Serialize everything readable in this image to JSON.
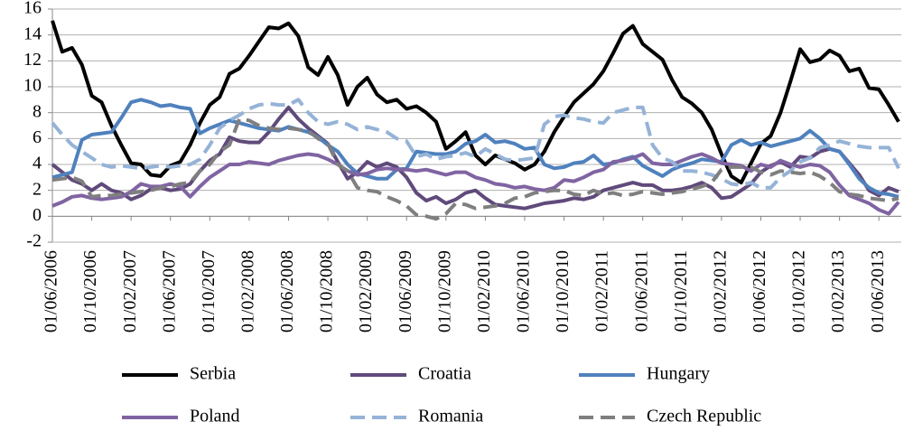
{
  "chart_data": {
    "type": "line",
    "categories": [
      "01/06/2006",
      null,
      null,
      null,
      "01/10/2006",
      null,
      null,
      null,
      "01/02/2007",
      null,
      null,
      null,
      "01/06/2007",
      null,
      null,
      null,
      "01/10/2007",
      null,
      null,
      null,
      "01/02/2008",
      null,
      null,
      null,
      "01/06/2008",
      null,
      null,
      null,
      "01/10/2008",
      null,
      null,
      null,
      "01/02/2009",
      null,
      null,
      null,
      "01/06/2009",
      null,
      null,
      null,
      "01/10/2009",
      null,
      null,
      null,
      "01/02/2010",
      null,
      null,
      null,
      "01/06/2010",
      null,
      null,
      null,
      "01/10/2010",
      null,
      null,
      null,
      "01/02/2011",
      null,
      null,
      null,
      "01/06/2011",
      null,
      null,
      null,
      "01/10/2011",
      null,
      null,
      null,
      "01/02/2012",
      null,
      null,
      null,
      "01/06/2012",
      null,
      null,
      null,
      "01/10/2012",
      null,
      null,
      null,
      "01/02/2013",
      null,
      null,
      null,
      "01/06/2013",
      null,
      null
    ],
    "ylim": [
      -2,
      16
    ],
    "yticks": [
      -2,
      0,
      2,
      4,
      6,
      8,
      10,
      12,
      14,
      16
    ],
    "grid": true,
    "series": [
      {
        "name": "Serbia",
        "color": "#000000",
        "style": "solid",
        "values": [
          15.1,
          12.7,
          13.0,
          11.7,
          9.3,
          8.8,
          7.0,
          5.5,
          4.1,
          4.0,
          3.2,
          3.1,
          3.9,
          4.2,
          5.5,
          7.2,
          8.6,
          9.2,
          11.0,
          11.4,
          12.4,
          13.5,
          14.6,
          14.5,
          14.9,
          13.9,
          11.5,
          10.9,
          12.3,
          10.9,
          8.6,
          10.0,
          10.7,
          9.4,
          8.8,
          9.0,
          8.3,
          8.5,
          8.0,
          7.3,
          5.2,
          5.8,
          6.5,
          4.7,
          4.0,
          4.7,
          4.4,
          4.1,
          3.6,
          4.0,
          5.0,
          6.5,
          7.7,
          8.8,
          9.5,
          10.2,
          11.2,
          12.6,
          14.1,
          14.7,
          13.3,
          12.7,
          12.1,
          10.5,
          9.2,
          8.7,
          8.0,
          6.7,
          4.8,
          3.1,
          2.6,
          4.1,
          5.6,
          6.2,
          8.0,
          10.4,
          12.9,
          11.9,
          12.1,
          12.8,
          12.4,
          11.2,
          11.4,
          9.9,
          9.8,
          8.6,
          7.3
        ]
      },
      {
        "name": "Croatia",
        "color": "#604a7b",
        "style": "solid",
        "values": [
          4.0,
          3.4,
          2.8,
          2.5,
          2.0,
          2.5,
          2.0,
          1.8,
          1.3,
          1.6,
          2.1,
          2.2,
          2.0,
          2.1,
          2.5,
          3.5,
          4.3,
          4.8,
          6.1,
          5.8,
          5.7,
          5.7,
          6.5,
          7.5,
          8.4,
          7.5,
          6.8,
          6.2,
          5.6,
          4.2,
          2.9,
          3.4,
          4.2,
          3.8,
          4.1,
          3.8,
          3.0,
          1.8,
          1.2,
          1.5,
          1.0,
          1.3,
          1.8,
          2.0,
          1.4,
          0.9,
          0.8,
          0.7,
          0.6,
          0.8,
          1.0,
          1.1,
          1.2,
          1.4,
          1.3,
          1.5,
          2.0,
          2.2,
          2.4,
          2.6,
          2.4,
          2.4,
          2.0,
          2.0,
          2.1,
          2.3,
          2.6,
          2.2,
          1.4,
          1.5,
          2.0,
          2.5,
          3.4,
          3.9,
          4.2,
          3.8,
          4.6,
          4.5,
          5.0,
          5.2,
          5.0,
          4.1,
          3.2,
          2.0,
          1.6,
          2.2,
          1.9
        ]
      },
      {
        "name": "Hungary",
        "color": "#4f81bd",
        "style": "solid",
        "values": [
          3.0,
          3.2,
          3.4,
          5.9,
          6.3,
          6.4,
          6.5,
          7.6,
          8.8,
          9.0,
          8.8,
          8.5,
          8.6,
          8.4,
          8.3,
          6.4,
          6.8,
          7.1,
          7.4,
          7.2,
          7.0,
          6.8,
          6.7,
          6.6,
          6.9,
          6.7,
          6.5,
          6.1,
          5.5,
          5.0,
          4.0,
          3.3,
          3.1,
          2.9,
          2.9,
          3.6,
          3.7,
          5.0,
          4.9,
          4.8,
          4.8,
          5.0,
          5.6,
          5.8,
          6.3,
          5.7,
          5.8,
          5.6,
          5.2,
          5.3,
          4.0,
          3.7,
          3.8,
          4.1,
          4.2,
          4.7,
          4.0,
          4.1,
          4.4,
          4.6,
          3.9,
          3.5,
          3.1,
          3.6,
          3.9,
          4.1,
          4.4,
          4.3,
          4.2,
          5.5,
          5.9,
          5.5,
          5.7,
          5.4,
          5.6,
          5.8,
          6.0,
          6.6,
          6.0,
          5.2,
          5.0,
          4.0,
          2.9,
          2.2,
          1.8,
          1.7,
          1.5
        ]
      },
      {
        "name": "Poland",
        "color": "#8064a2",
        "style": "solid",
        "values": [
          0.8,
          1.1,
          1.5,
          1.6,
          1.4,
          1.3,
          1.4,
          1.5,
          1.9,
          2.5,
          2.3,
          2.3,
          2.5,
          2.3,
          1.5,
          2.3,
          3.0,
          3.5,
          4.0,
          4.0,
          4.2,
          4.1,
          4.0,
          4.3,
          4.5,
          4.7,
          4.8,
          4.7,
          4.4,
          4.0,
          3.5,
          3.2,
          3.3,
          3.6,
          3.7,
          3.6,
          3.6,
          3.5,
          3.6,
          3.4,
          3.2,
          3.4,
          3.4,
          3.0,
          2.8,
          2.5,
          2.4,
          2.2,
          2.3,
          2.1,
          2.0,
          2.2,
          2.8,
          2.7,
          3.0,
          3.4,
          3.6,
          4.2,
          4.3,
          4.5,
          4.8,
          4.1,
          4.0,
          4.0,
          4.3,
          4.6,
          4.8,
          4.5,
          4.1,
          4.0,
          3.9,
          3.5,
          4.0,
          3.8,
          4.3,
          4.0,
          3.8,
          4.0,
          3.9,
          3.4,
          2.4,
          1.6,
          1.3,
          1.0,
          0.5,
          0.2,
          1.1
        ]
      },
      {
        "name": "Romania",
        "color": "#95b3d7",
        "style": "dashed",
        "values": [
          7.2,
          6.3,
          5.5,
          5.0,
          4.5,
          4.0,
          3.8,
          3.9,
          3.8,
          3.7,
          3.8,
          3.9,
          3.8,
          3.9,
          4.0,
          4.4,
          5.5,
          6.8,
          7.4,
          7.8,
          8.3,
          8.6,
          8.7,
          8.6,
          8.6,
          9.0,
          8.0,
          7.3,
          7.1,
          7.3,
          7.1,
          6.7,
          6.9,
          6.7,
          6.5,
          6.0,
          5.8,
          4.6,
          4.8,
          4.4,
          4.6,
          4.7,
          4.9,
          4.6,
          5.2,
          4.8,
          4.4,
          4.3,
          4.4,
          4.5,
          7.1,
          7.7,
          7.8,
          7.6,
          7.5,
          7.3,
          7.2,
          8.0,
          8.2,
          8.4,
          8.4,
          5.5,
          4.5,
          4.2,
          3.5,
          3.5,
          3.4,
          3.2,
          2.9,
          2.5,
          2.4,
          2.6,
          2.2,
          2.2,
          3.0,
          3.5,
          4.2,
          4.5,
          5.3,
          5.5,
          5.8,
          5.6,
          5.4,
          5.3,
          5.3,
          5.3,
          3.7
        ]
      },
      {
        "name": "Czech Republic",
        "color": "#7f7f7f",
        "style": "dashed",
        "values": [
          2.8,
          2.9,
          3.0,
          2.7,
          1.5,
          1.6,
          1.6,
          1.7,
          1.8,
          1.9,
          2.0,
          2.2,
          2.3,
          2.5,
          2.6,
          3.5,
          4.0,
          5.0,
          5.5,
          7.5,
          7.4,
          7.0,
          6.8,
          6.7,
          6.8,
          6.7,
          6.6,
          6.0,
          5.6,
          4.0,
          3.5,
          2.2,
          2.0,
          1.9,
          1.5,
          1.2,
          0.8,
          0.1,
          0.0,
          -0.2,
          0.2,
          1.0,
          0.9,
          0.6,
          0.7,
          0.8,
          1.0,
          1.4,
          1.5,
          1.8,
          1.9,
          2.0,
          2.0,
          1.7,
          1.6,
          2.0,
          1.7,
          1.8,
          1.6,
          1.7,
          1.9,
          1.8,
          1.7,
          1.8,
          1.9,
          2.1,
          2.3,
          2.6,
          3.6,
          3.8,
          3.8,
          3.8,
          3.4,
          3.2,
          3.5,
          3.4,
          3.3,
          3.4,
          3.1,
          2.6,
          1.9,
          1.7,
          1.6,
          1.4,
          1.3,
          1.2,
          1.4
        ]
      }
    ]
  }
}
